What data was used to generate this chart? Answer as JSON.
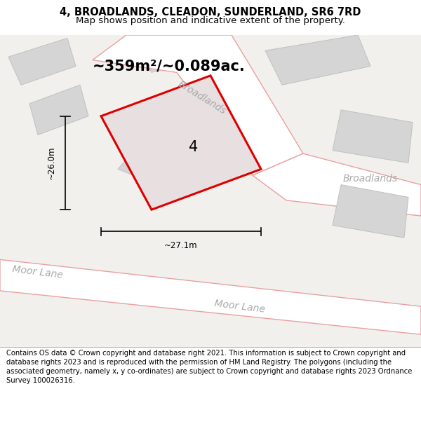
{
  "title": "4, BROADLANDS, CLEADON, SUNDERLAND, SR6 7RD",
  "subtitle": "Map shows position and indicative extent of the property.",
  "footer": "Contains OS data © Crown copyright and database right 2021. This information is subject to Crown copyright and database rights 2023 and is reproduced with the permission of HM Land Registry. The polygons (including the associated geometry, namely x, y co-ordinates) are subject to Crown copyright and database rights 2023 Ordnance Survey 100026316.",
  "map_bg": "#f2f0ed",
  "road_fill": "#ffffff",
  "road_border": "#e8a0a0",
  "building_fill": "#d5d5d5",
  "building_border": "#c0c0c0",
  "highlight_border": "#dd0000",
  "highlight_fill": "#e8e0e0",
  "highlight_lw": 2.2,
  "area_text": "~359m²/~0.089ac.",
  "label_number": "4",
  "dim_width": "~27.1m",
  "dim_height": "~26.0m",
  "street_color": "#aaaaaa",
  "title_fontsize": 10.5,
  "subtitle_fontsize": 9.5,
  "footer_fontsize": 7.2,
  "label_fontsize": 15,
  "area_fontsize": 15,
  "street_fontsize": 10,
  "dim_fontsize": 8.5
}
